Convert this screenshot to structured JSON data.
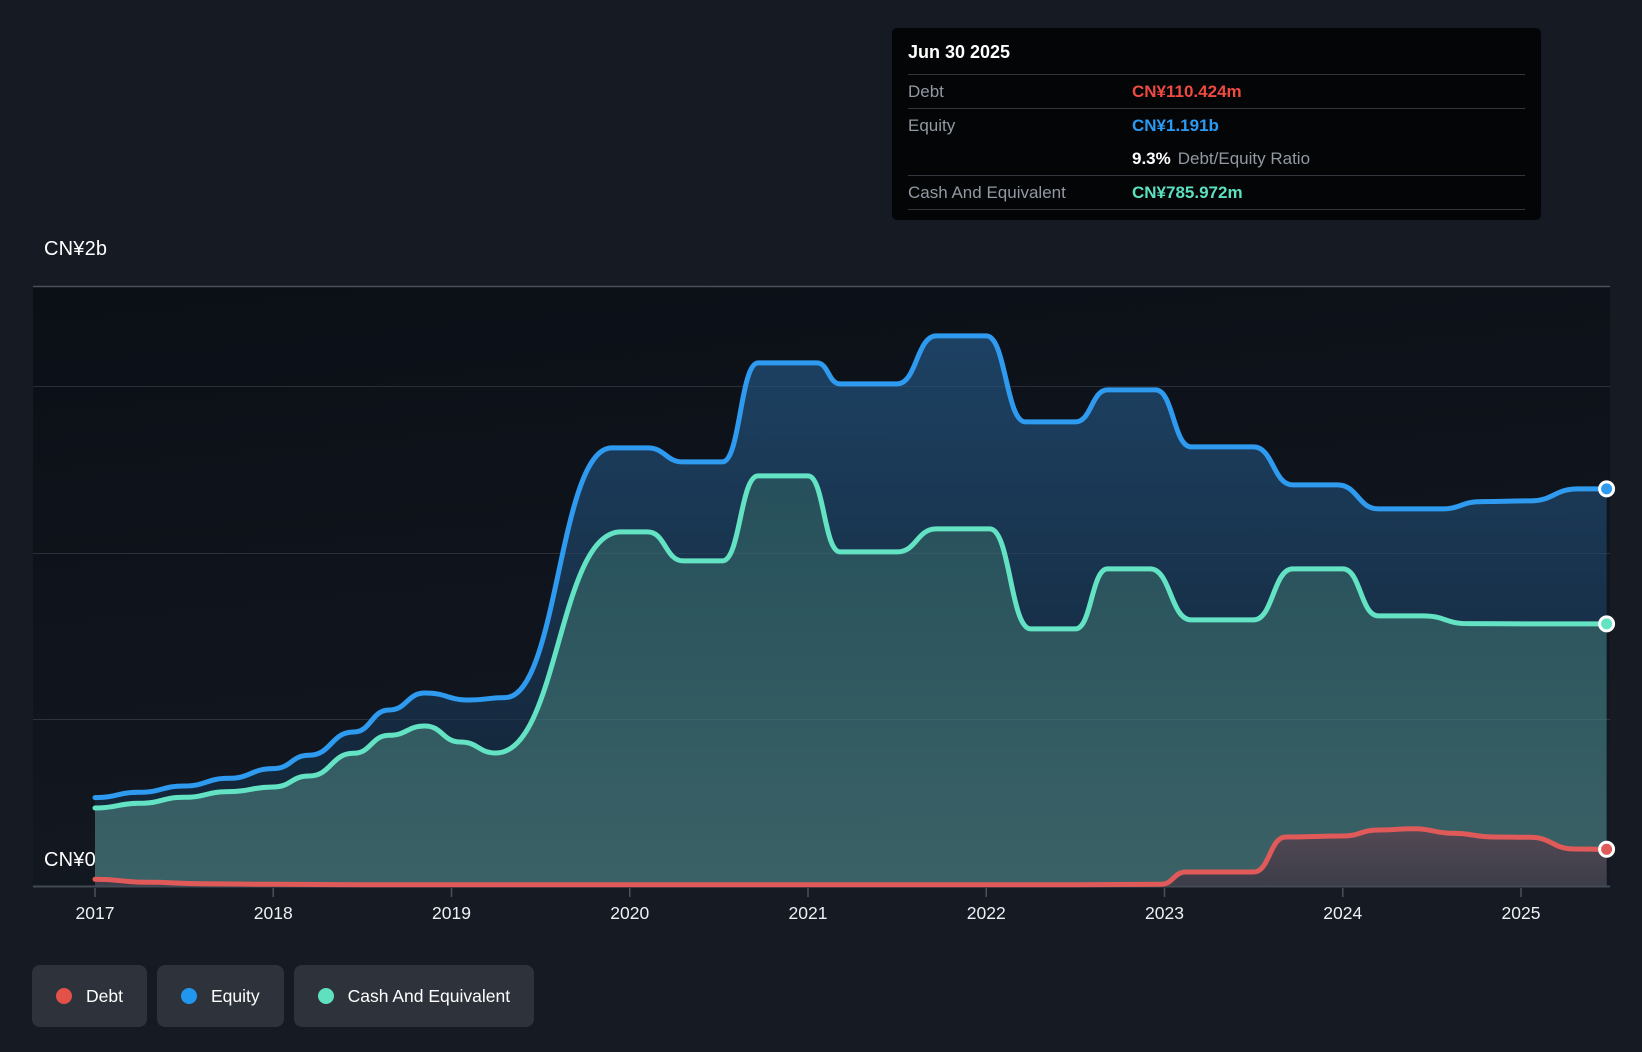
{
  "tooltip": {
    "date": "Jun 30 2025",
    "debt_label": "Debt",
    "debt_value": "CN¥110.424m",
    "debt_color": "#ee4a42",
    "equity_label": "Equity",
    "equity_value": "CN¥1.191b",
    "equity_color": "#2b9af3",
    "ratio_value": "9.3%",
    "ratio_label": "Debt/Equity Ratio",
    "cash_label": "Cash And Equivalent",
    "cash_value": "CN¥785.972m",
    "cash_color": "#5ce0bf"
  },
  "legend": {
    "items": [
      {
        "key": "debt",
        "label": "Debt",
        "color": "#e25248"
      },
      {
        "key": "equity",
        "label": "Equity",
        "color": "#2196ee"
      },
      {
        "key": "cash",
        "label": "Cash And Equivalent",
        "color": "#5fe0bf"
      }
    ]
  },
  "chart_data": {
    "type": "area",
    "unit": "CN¥ millions",
    "x_ticks": [
      2017,
      2018,
      2019,
      2020,
      2021,
      2022,
      2023,
      2024,
      2025
    ],
    "x_range": [
      2017,
      2025.5
    ],
    "ylim": [
      0,
      2000
    ],
    "y_axis_labels": {
      "top": "CN¥2b",
      "zero": "CN¥0"
    },
    "grid": true,
    "legend_position": "bottom-left",
    "last_point_date": "Jun 30 2025",
    "series": [
      {
        "key": "equity",
        "name": "Equity",
        "color": "#2e9bf0",
        "end_value_label": "CN¥1.191b",
        "points": [
          [
            2017.0,
            265
          ],
          [
            2017.25,
            281
          ],
          [
            2017.5,
            300
          ],
          [
            2017.75,
            323
          ],
          [
            2018.0,
            352
          ],
          [
            2018.2,
            392
          ],
          [
            2018.45,
            462
          ],
          [
            2018.65,
            528
          ],
          [
            2018.85,
            579
          ],
          [
            2019.1,
            558
          ],
          [
            2019.3,
            565
          ],
          [
            2019.9,
            1314
          ],
          [
            2020.1,
            1314
          ],
          [
            2020.3,
            1272
          ],
          [
            2020.52,
            1272
          ],
          [
            2020.72,
            1569
          ],
          [
            2021.05,
            1569
          ],
          [
            2021.18,
            1506
          ],
          [
            2021.5,
            1506
          ],
          [
            2021.72,
            1650
          ],
          [
            2022.0,
            1650
          ],
          [
            2022.22,
            1392
          ],
          [
            2022.5,
            1392
          ],
          [
            2022.68,
            1488
          ],
          [
            2022.95,
            1488
          ],
          [
            2023.15,
            1317
          ],
          [
            2023.5,
            1317
          ],
          [
            2023.72,
            1203
          ],
          [
            2023.97,
            1203
          ],
          [
            2024.2,
            1131
          ],
          [
            2024.55,
            1131
          ],
          [
            2024.78,
            1153
          ],
          [
            2025.05,
            1155
          ],
          [
            2025.32,
            1191
          ],
          [
            2025.48,
            1191
          ]
        ]
      },
      {
        "key": "cash",
        "name": "Cash And Equivalent",
        "color": "#63e3c3",
        "end_value_label": "CN¥785.972m",
        "points": [
          [
            2017.0,
            234
          ],
          [
            2017.25,
            248
          ],
          [
            2017.5,
            266
          ],
          [
            2017.75,
            283
          ],
          [
            2018.0,
            297
          ],
          [
            2018.2,
            330
          ],
          [
            2018.45,
            398
          ],
          [
            2018.65,
            452
          ],
          [
            2018.85,
            480
          ],
          [
            2019.05,
            432
          ],
          [
            2019.25,
            399
          ],
          [
            2019.95,
            1062
          ],
          [
            2020.1,
            1062
          ],
          [
            2020.3,
            975
          ],
          [
            2020.52,
            975
          ],
          [
            2020.72,
            1230
          ],
          [
            2021.0,
            1230
          ],
          [
            2021.18,
            1002
          ],
          [
            2021.5,
            1002
          ],
          [
            2021.72,
            1071
          ],
          [
            2022.02,
            1071
          ],
          [
            2022.25,
            771
          ],
          [
            2022.5,
            771
          ],
          [
            2022.68,
            951
          ],
          [
            2022.92,
            951
          ],
          [
            2023.15,
            798
          ],
          [
            2023.5,
            798
          ],
          [
            2023.72,
            951
          ],
          [
            2024.0,
            951
          ],
          [
            2024.2,
            810
          ],
          [
            2024.45,
            810
          ],
          [
            2024.7,
            787
          ],
          [
            2025.1,
            786
          ],
          [
            2025.48,
            786
          ]
        ]
      },
      {
        "key": "debt",
        "name": "Debt",
        "color": "#df5a58",
        "end_value_label": "CN¥110.424m",
        "points": [
          [
            2017.0,
            20
          ],
          [
            2017.3,
            11
          ],
          [
            2017.6,
            7
          ],
          [
            2018.0,
            5
          ],
          [
            2018.5,
            4
          ],
          [
            2019.0,
            4
          ],
          [
            2019.5,
            4
          ],
          [
            2020.0,
            4
          ],
          [
            2020.5,
            4
          ],
          [
            2021.0,
            4
          ],
          [
            2021.5,
            4
          ],
          [
            2022.0,
            4
          ],
          [
            2022.5,
            4
          ],
          [
            2022.98,
            5
          ],
          [
            2023.12,
            42
          ],
          [
            2023.5,
            42
          ],
          [
            2023.68,
            147
          ],
          [
            2024.0,
            150
          ],
          [
            2024.2,
            168
          ],
          [
            2024.4,
            172
          ],
          [
            2024.62,
            158
          ],
          [
            2024.85,
            147
          ],
          [
            2025.05,
            146
          ],
          [
            2025.3,
            111
          ],
          [
            2025.48,
            110
          ]
        ]
      }
    ]
  }
}
